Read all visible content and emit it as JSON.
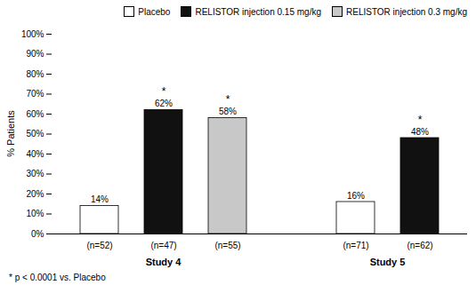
{
  "chart_data": {
    "type": "bar",
    "categories": [
      "Study 4",
      "Study 5"
    ],
    "ylabel": "% Patients",
    "ylim": [
      0,
      100
    ],
    "yticks": [
      {
        "value": 0,
        "label": "0%"
      },
      {
        "value": 10,
        "label": "10%"
      },
      {
        "value": 20,
        "label": "20%"
      },
      {
        "value": 30,
        "label": "30%"
      },
      {
        "value": 40,
        "label": "40%"
      },
      {
        "value": 50,
        "label": "50%"
      },
      {
        "value": 60,
        "label": "60%"
      },
      {
        "value": 70,
        "label": "70%"
      },
      {
        "value": 80,
        "label": "80%"
      },
      {
        "value": 90,
        "label": "90%"
      },
      {
        "value": 100,
        "label": "100%"
      }
    ],
    "grid": false,
    "legend": "upper right",
    "data_labels": true,
    "footnote": "* p < 0.0001 vs. Placebo",
    "series": [
      {
        "name": "Placebo",
        "color": "white",
        "values": [
          14,
          16
        ],
        "value_labels": [
          "14%",
          "16%"
        ],
        "n_labels": [
          "(n=52)",
          "(n=71)"
        ],
        "stars": [
          null,
          null
        ]
      },
      {
        "name": "RELISTOR injection 0.15 mg/kg",
        "color": "#111111",
        "values": [
          62,
          48
        ],
        "value_labels": [
          "62%",
          "48%"
        ],
        "n_labels": [
          "(n=47)",
          "(n=62)"
        ],
        "stars": [
          "*",
          "*"
        ]
      },
      {
        "name": "RELISTOR injection 0.3 mg/kg",
        "color": "#c8c8c8",
        "values": [
          58,
          null
        ],
        "value_labels": [
          "58%",
          null
        ],
        "n_labels": [
          "(n=55)",
          null
        ],
        "stars": [
          "*",
          null
        ]
      }
    ]
  }
}
